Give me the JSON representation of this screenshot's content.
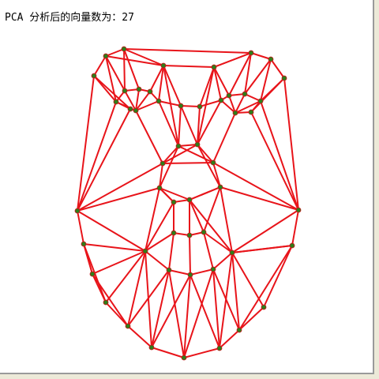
{
  "status": {
    "label": "PCA 分析后的向量数为：27"
  },
  "colors": {
    "edge": "#e8141a",
    "vertex_fill": "#2f7d1a",
    "vertex_stroke": "#c8141a",
    "background": "#ffffff"
  },
  "mesh": {
    "vertex_count_shown": 27
  }
}
